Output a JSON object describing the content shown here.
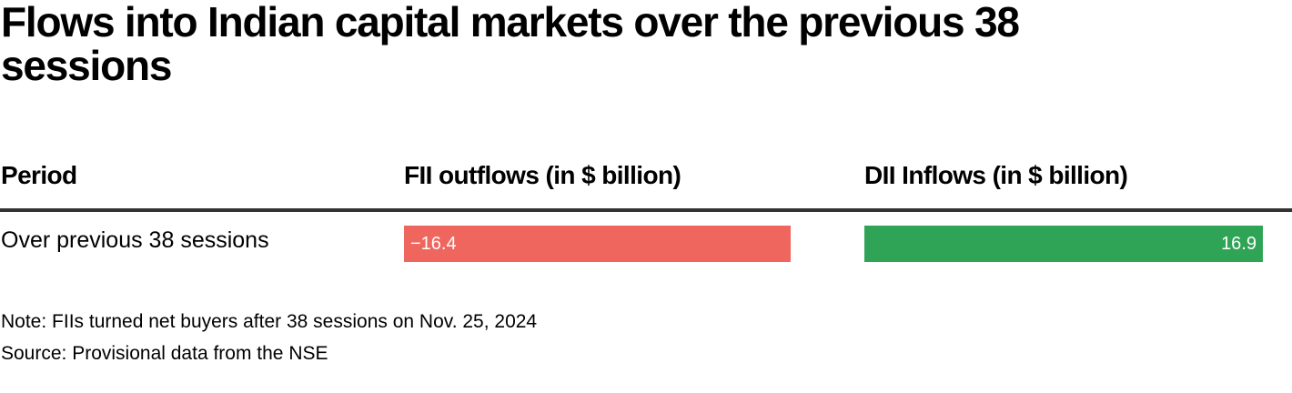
{
  "title": "Flows into Indian capital markets over the previous 38 sessions",
  "table": {
    "columns": [
      "Period",
      "FII outflows (in $ billion)",
      "DII Inflows (in $ billion)"
    ]
  },
  "colors": {
    "outflow_bar": "#ef665e",
    "inflow_bar": "#30a456",
    "header_rule": "#333333"
  },
  "chart_data": {
    "type": "table",
    "title": "Flows into Indian capital markets over the previous 38 sessions",
    "columns": [
      "Period",
      "FII outflows (in $ billion)",
      "DII Inflows (in $ billion)"
    ],
    "rows": [
      {
        "period": "Over previous 38 sessions",
        "fii_outflows": -16.4,
        "fii_outflows_label": "−16.4",
        "dii_inflows": 16.9,
        "dii_inflows_label": "16.9"
      }
    ],
    "bar_scale_max": 16.9
  },
  "notes": {
    "note": "Note: FIIs turned net buyers after 38 sessions on Nov. 25, 2024",
    "source": "Source: Provisional data from the NSE"
  }
}
